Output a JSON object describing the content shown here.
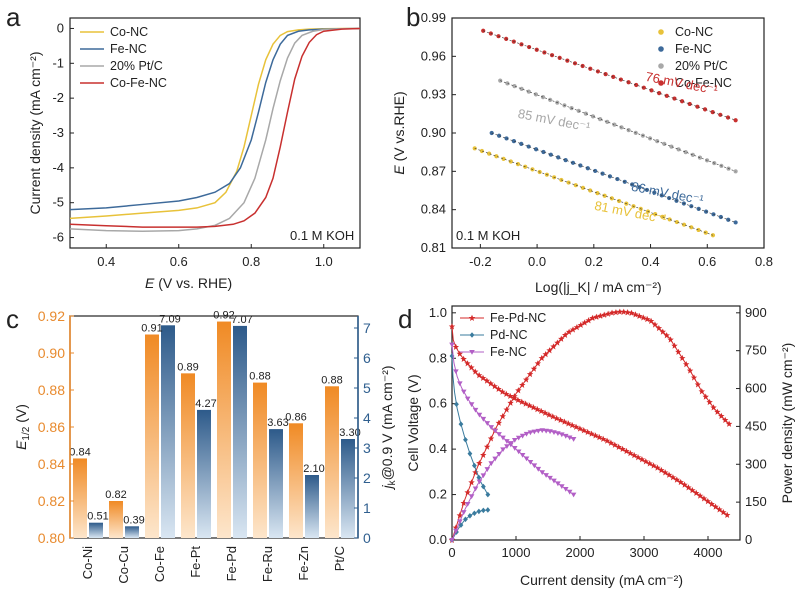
{
  "chart_data": [
    {
      "panel": "a",
      "type": "line",
      "xlabel_italic": "E",
      "xlabel_rest": " (V vs. RHE)",
      "ylabel": "Current density (mA cm⁻²)",
      "xlim": [
        0.3,
        1.1
      ],
      "ylim": [
        -6.3,
        0.3
      ],
      "xticks": [
        0.4,
        0.6,
        0.8,
        1.0
      ],
      "yticks": [
        0,
        -1,
        -2,
        -3,
        -4,
        -5,
        -6
      ],
      "annotation": "0.1 M KOH",
      "series": [
        {
          "name": "Co-NC",
          "color": "#e8c23a",
          "x": [
            0.3,
            0.4,
            0.5,
            0.6,
            0.65,
            0.7,
            0.73,
            0.76,
            0.78,
            0.8,
            0.82,
            0.84,
            0.86,
            0.88,
            0.9,
            0.93,
            0.96,
            1.0,
            1.05,
            1.1
          ],
          "y": [
            -5.45,
            -5.38,
            -5.3,
            -5.22,
            -5.15,
            -5.0,
            -4.7,
            -4.1,
            -3.4,
            -2.5,
            -1.6,
            -0.9,
            -0.45,
            -0.2,
            -0.09,
            -0.04,
            -0.02,
            -0.01,
            0.0,
            0.0
          ]
        },
        {
          "name": "Fe-NC",
          "color": "#3d6a9a",
          "x": [
            0.3,
            0.4,
            0.5,
            0.6,
            0.65,
            0.7,
            0.74,
            0.77,
            0.8,
            0.82,
            0.84,
            0.86,
            0.88,
            0.9,
            0.93,
            0.96,
            1.0,
            1.05,
            1.1
          ],
          "y": [
            -5.2,
            -5.15,
            -5.05,
            -4.95,
            -4.85,
            -4.7,
            -4.45,
            -4.0,
            -3.2,
            -2.4,
            -1.55,
            -0.9,
            -0.45,
            -0.2,
            -0.08,
            -0.04,
            -0.02,
            -0.01,
            0.0
          ]
        },
        {
          "name": "20% Pt/C",
          "color": "#a8a8a8",
          "x": [
            0.3,
            0.4,
            0.5,
            0.6,
            0.65,
            0.7,
            0.74,
            0.78,
            0.81,
            0.84,
            0.86,
            0.88,
            0.9,
            0.92,
            0.94,
            0.97,
            1.0,
            1.05,
            1.1
          ],
          "y": [
            -5.75,
            -5.8,
            -5.82,
            -5.8,
            -5.75,
            -5.65,
            -5.45,
            -5.0,
            -4.3,
            -3.2,
            -2.3,
            -1.5,
            -0.85,
            -0.42,
            -0.2,
            -0.08,
            -0.03,
            -0.01,
            0.0
          ]
        },
        {
          "name": "Co-Fe-NC",
          "color": "#c8302f",
          "x": [
            0.3,
            0.4,
            0.5,
            0.6,
            0.65,
            0.7,
            0.75,
            0.78,
            0.81,
            0.84,
            0.86,
            0.88,
            0.9,
            0.92,
            0.94,
            0.96,
            0.98,
            1.0,
            1.05,
            1.1
          ],
          "y": [
            -5.62,
            -5.66,
            -5.7,
            -5.7,
            -5.7,
            -5.68,
            -5.62,
            -5.52,
            -5.3,
            -4.85,
            -4.3,
            -3.4,
            -2.4,
            -1.45,
            -0.8,
            -0.4,
            -0.18,
            -0.08,
            -0.02,
            0.0
          ]
        }
      ]
    },
    {
      "panel": "b",
      "type": "scatter",
      "xlabel": "Log(|j_K| / mA cm⁻²)",
      "ylabel_italic": "E",
      "ylabel_rest": " (V vs.RHE)",
      "xlim": [
        -0.3,
        0.8
      ],
      "ylim": [
        0.81,
        0.99
      ],
      "xticks": [
        -0.2,
        0.0,
        0.2,
        0.4,
        0.6,
        0.8
      ],
      "yticks": [
        0.81,
        0.84,
        0.87,
        0.9,
        0.93,
        0.96,
        0.99
      ],
      "annotation": "0.1 M KOH",
      "series": [
        {
          "name": "Co-NC",
          "color": "#e8c23a",
          "x_start": -0.22,
          "x_end": 0.62,
          "y_start": 0.888,
          "y_end": 0.82,
          "slope_label": "81 mV dec⁻¹"
        },
        {
          "name": "Fe-NC",
          "color": "#3d6a9a",
          "x_start": -0.16,
          "x_end": 0.7,
          "y_start": 0.9,
          "y_end": 0.83,
          "slope_label": "86 mV dec⁻¹"
        },
        {
          "name": "20% Pt/C",
          "color": "#a8a8a8",
          "x_start": -0.13,
          "x_end": 0.7,
          "y_start": 0.941,
          "y_end": 0.87,
          "slope_label": "85 mV dec⁻¹"
        },
        {
          "name": "Co-Fe-NC",
          "color": "#c8302f",
          "x_start": -0.19,
          "x_end": 0.7,
          "y_start": 0.98,
          "y_end": 0.91,
          "slope_label": "76 mV dec⁻¹"
        }
      ]
    },
    {
      "panel": "c",
      "type": "bar",
      "categories": [
        "Co-Ni",
        "Co-Cu",
        "Co-Fe",
        "Fe-Pt",
        "Fe-Pd",
        "Fe-Ru",
        "Fe-Zn",
        "Pt/C"
      ],
      "left_axis": {
        "label": "E1/2 (V)",
        "ylim": [
          0.8,
          0.92
        ],
        "yticks": [
          0.8,
          0.82,
          0.84,
          0.86,
          0.88,
          0.9,
          0.92
        ],
        "color": "#e88a2e"
      },
      "right_axis": {
        "label": "jk@0.9 V (mA cm⁻²)",
        "ylim": [
          0,
          7.4
        ],
        "yticks": [
          0,
          1,
          2,
          3,
          4,
          5,
          6,
          7
        ],
        "color": "#2f5f8f"
      },
      "series": [
        {
          "name": "E1/2",
          "axis": "left",
          "values": [
            0.843,
            0.82,
            0.91,
            0.889,
            0.917,
            0.884,
            0.862,
            0.882
          ],
          "labels": [
            "0.84",
            "0.82",
            "0.91",
            "0.89",
            "0.92",
            "0.88",
            "0.86",
            "0.88"
          ]
        },
        {
          "name": "jk",
          "axis": "right",
          "values": [
            0.51,
            0.39,
            7.09,
            4.27,
            7.07,
            3.63,
            2.1,
            3.3
          ],
          "labels": [
            "0.51",
            "0.39",
            "7.09",
            "4.27",
            "7.07",
            "3.63",
            "2.10",
            "3.30"
          ]
        }
      ]
    },
    {
      "panel": "d",
      "type": "line",
      "xlabel": "Current density (mA cm⁻²)",
      "ylabel_left": "Cell Voltage (V)",
      "ylabel_right": "Power density (mW cm⁻²)",
      "xlim": [
        0,
        4500
      ],
      "ylim_left": [
        0,
        1.03
      ],
      "ylim_right": [
        0,
        927
      ],
      "xticks": [
        0,
        1000,
        2000,
        3000,
        4000
      ],
      "yticks_left": [
        0.0,
        0.2,
        0.4,
        0.6,
        0.8,
        1.0
      ],
      "yticks_right": [
        0,
        150,
        300,
        450,
        600,
        750,
        900
      ],
      "series": [
        {
          "name": "Fe-Pd-NC",
          "color": "#d42a2a",
          "marker": "star",
          "voltage": {
            "x": [
              0,
              20,
              60,
              120,
              200,
              300,
              400,
              600,
              800,
              1000,
              1300,
              1600,
              2000,
              2400,
              2800,
              3200,
              3600,
              3900,
              4150,
              4300
            ],
            "y": [
              0.94,
              0.88,
              0.85,
              0.82,
              0.79,
              0.76,
              0.73,
              0.69,
              0.65,
              0.62,
              0.58,
              0.54,
              0.49,
              0.44,
              0.38,
              0.32,
              0.25,
              0.19,
              0.14,
              0.11
            ]
          },
          "power": {
            "x": [
              0,
              200,
              400,
              700,
              1000,
              1400,
              1800,
              2200,
              2500,
              2650,
              2800,
              3100,
              3400,
              3700,
              3900,
              4100,
              4250,
              4330
            ],
            "y": [
              0,
              160,
              290,
              450,
              580,
              720,
              820,
              880,
              900,
              905,
              900,
              870,
              800,
              680,
              590,
              520,
              480,
              460
            ]
          }
        },
        {
          "name": "Pd-NC",
          "color": "#3a7b9e",
          "marker": "diamond",
          "voltage": {
            "x": [
              0,
              15,
              40,
              80,
              130,
              200,
              280,
              360,
              440,
              520,
              560
            ],
            "y": [
              0.81,
              0.72,
              0.65,
              0.58,
              0.52,
              0.45,
              0.38,
              0.32,
              0.26,
              0.22,
              0.2
            ]
          },
          "power": {
            "x": [
              0,
              100,
              200,
              300,
              400,
              500,
              560
            ],
            "y": [
              0,
              45,
              80,
              100,
              112,
              118,
              119
            ]
          }
        },
        {
          "name": "Fe-NC",
          "color": "#b25fc6",
          "marker": "triangle",
          "voltage": {
            "x": [
              0,
              30,
              80,
              150,
              250,
              400,
              600,
              800,
              1000,
              1200,
              1400,
              1600,
              1800,
              1900
            ],
            "y": [
              0.86,
              0.78,
              0.72,
              0.67,
              0.62,
              0.56,
              0.5,
              0.45,
              0.4,
              0.35,
              0.3,
              0.26,
              0.22,
              0.2
            ]
          },
          "power": {
            "x": [
              0,
              200,
              400,
              600,
              800,
              1000,
              1200,
              1400,
              1550,
              1700,
              1850,
              1900
            ],
            "y": [
              0,
              120,
              220,
              300,
              360,
              400,
              425,
              435,
              430,
              420,
              405,
              400
            ]
          }
        }
      ]
    }
  ],
  "labels": {
    "panel_a": "a",
    "panel_b": "b",
    "panel_c": "c",
    "panel_d": "d",
    "c_left_label_main": "E",
    "c_left_label_sub": "1/2",
    "c_left_label_rest": " (V)",
    "c_right_label_main": "j",
    "c_right_label_sub": "k",
    "c_right_label_rest": "@0.9 V (mA cm⁻²)"
  },
  "colors": {
    "orange_top": "#f08a24",
    "orange_bottom": "#fde6cc",
    "blue_top": "#2d5a8a",
    "blue_bottom": "#d9e6f2"
  }
}
